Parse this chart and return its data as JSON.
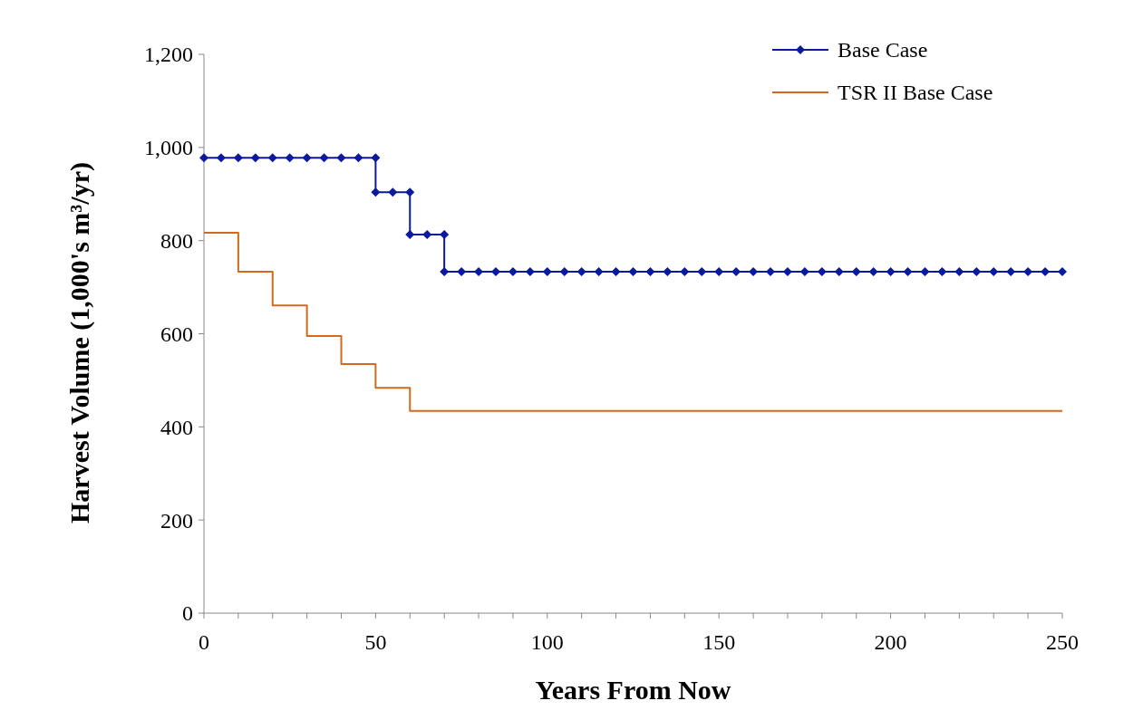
{
  "chart_data": {
    "type": "line",
    "xlabel": "Years From Now",
    "ylabel": "Harvest Volume (1,000's m³/yr)",
    "xlim": [
      0,
      250
    ],
    "xticks": [
      0,
      {
        "value": 10,
        "label": null
      },
      {
        "value": 20,
        "label": null
      },
      {
        "value": 30,
        "label": null
      },
      {
        "value": 40,
        "label": null
      },
      50,
      {
        "value": 60,
        "label": null
      },
      {
        "value": 70,
        "label": null
      },
      {
        "value": 80,
        "label": null
      },
      {
        "value": 90,
        "label": null
      },
      100,
      {
        "value": 110,
        "label": null
      },
      {
        "value": 120,
        "label": null
      },
      {
        "value": 130,
        "label": null
      },
      {
        "value": 140,
        "label": null
      },
      150,
      {
        "value": 160,
        "label": null
      },
      {
        "value": 170,
        "label": null
      },
      {
        "value": 180,
        "label": null
      },
      {
        "value": 190,
        "label": null
      },
      200,
      {
        "value": 210,
        "label": null
      },
      {
        "value": 220,
        "label": null
      },
      {
        "value": 230,
        "label": null
      },
      {
        "value": 240,
        "label": null
      },
      250
    ],
    "ylim": [
      0,
      1200
    ],
    "yticks": [
      {
        "value": 0,
        "label": "0"
      },
      {
        "value": 200,
        "label": "200"
      },
      {
        "value": 400,
        "label": "400"
      },
      {
        "value": 600,
        "label": "600"
      },
      {
        "value": 800,
        "label": "800"
      },
      {
        "value": 1000,
        "label": "1,000"
      },
      {
        "value": 1200,
        "label": "1,200"
      }
    ],
    "grid": false,
    "legend": "top right",
    "series": [
      {
        "name": "Base Case",
        "color": "#0a1a9c",
        "marker": "diamond",
        "x": [
          0,
          5,
          10,
          15,
          20,
          25,
          30,
          35,
          40,
          45,
          50,
          50,
          55,
          60,
          60,
          65,
          70,
          70,
          75,
          80,
          85,
          90,
          95,
          100,
          105,
          110,
          115,
          120,
          125,
          130,
          135,
          140,
          145,
          150,
          155,
          160,
          165,
          170,
          175,
          180,
          185,
          190,
          195,
          200,
          205,
          210,
          215,
          220,
          225,
          230,
          235,
          240,
          245,
          250
        ],
        "values": [
          978,
          978,
          978,
          978,
          978,
          978,
          978,
          978,
          978,
          978,
          978,
          904,
          904,
          904,
          813,
          813,
          813,
          733,
          733,
          733,
          733,
          733,
          733,
          733,
          733,
          733,
          733,
          733,
          733,
          733,
          733,
          733,
          733,
          733,
          733,
          733,
          733,
          733,
          733,
          733,
          733,
          733,
          733,
          733,
          733,
          733,
          733,
          733,
          733,
          733,
          733,
          733,
          733,
          733
        ]
      },
      {
        "name": "TSR II Base Case",
        "type": "step",
        "color": "#d2691e",
        "marker": "none",
        "x": [
          0,
          10,
          20,
          30,
          40,
          50,
          60,
          250
        ],
        "values": [
          817,
          733,
          661,
          595,
          535,
          484,
          434,
          434
        ]
      }
    ]
  }
}
